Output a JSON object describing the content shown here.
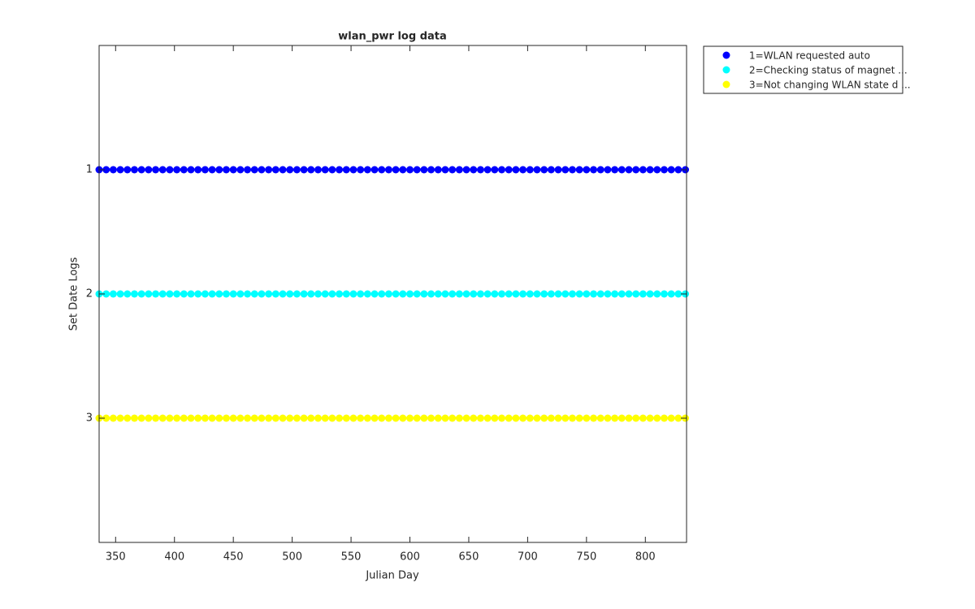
{
  "chart_data": {
    "type": "scatter",
    "title": "wlan_pwr log data",
    "xlabel": "Julian Day",
    "ylabel": "Set Date Logs",
    "x": [
      336,
      342,
      348,
      354,
      360,
      366,
      372,
      378,
      384,
      390,
      396,
      402,
      408,
      414,
      420,
      426,
      432,
      438,
      444,
      450,
      456,
      462,
      468,
      474,
      480,
      486,
      492,
      498,
      504,
      510,
      516,
      522,
      528,
      534,
      540,
      546,
      552,
      558,
      564,
      570,
      576,
      582,
      588,
      594,
      600,
      606,
      612,
      618,
      624,
      630,
      636,
      642,
      648,
      654,
      660,
      666,
      672,
      678,
      684,
      690,
      696,
      702,
      708,
      714,
      720,
      726,
      732,
      738,
      744,
      750,
      756,
      762,
      768,
      774,
      780,
      786,
      792,
      798,
      804,
      810,
      816,
      822,
      828,
      834
    ],
    "series": [
      {
        "name": "1=WLAN requested auto",
        "color": "#0000ff",
        "values": [
          1,
          1,
          1,
          1,
          1,
          1,
          1,
          1,
          1,
          1,
          1,
          1,
          1,
          1,
          1,
          1,
          1,
          1,
          1,
          1,
          1,
          1,
          1,
          1,
          1,
          1,
          1,
          1,
          1,
          1,
          1,
          1,
          1,
          1,
          1,
          1,
          1,
          1,
          1,
          1,
          1,
          1,
          1,
          1,
          1,
          1,
          1,
          1,
          1,
          1,
          1,
          1,
          1,
          1,
          1,
          1,
          1,
          1,
          1,
          1,
          1,
          1,
          1,
          1,
          1,
          1,
          1,
          1,
          1,
          1,
          1,
          1,
          1,
          1,
          1,
          1,
          1,
          1,
          1,
          1,
          1,
          1,
          1,
          1
        ]
      },
      {
        "name": "2=Checking status of magnet ...",
        "color": "#00ffff",
        "values": [
          2,
          2,
          2,
          2,
          2,
          2,
          2,
          2,
          2,
          2,
          2,
          2,
          2,
          2,
          2,
          2,
          2,
          2,
          2,
          2,
          2,
          2,
          2,
          2,
          2,
          2,
          2,
          2,
          2,
          2,
          2,
          2,
          2,
          2,
          2,
          2,
          2,
          2,
          2,
          2,
          2,
          2,
          2,
          2,
          2,
          2,
          2,
          2,
          2,
          2,
          2,
          2,
          2,
          2,
          2,
          2,
          2,
          2,
          2,
          2,
          2,
          2,
          2,
          2,
          2,
          2,
          2,
          2,
          2,
          2,
          2,
          2,
          2,
          2,
          2,
          2,
          2,
          2,
          2,
          2,
          2,
          2,
          2,
          2
        ]
      },
      {
        "name": "3=Not changing WLAN state d ...",
        "color": "#ffff00",
        "values": [
          3,
          3,
          3,
          3,
          3,
          3,
          3,
          3,
          3,
          3,
          3,
          3,
          3,
          3,
          3,
          3,
          3,
          3,
          3,
          3,
          3,
          3,
          3,
          3,
          3,
          3,
          3,
          3,
          3,
          3,
          3,
          3,
          3,
          3,
          3,
          3,
          3,
          3,
          3,
          3,
          3,
          3,
          3,
          3,
          3,
          3,
          3,
          3,
          3,
          3,
          3,
          3,
          3,
          3,
          3,
          3,
          3,
          3,
          3,
          3,
          3,
          3,
          3,
          3,
          3,
          3,
          3,
          3,
          3,
          3,
          3,
          3,
          3,
          3,
          3,
          3,
          3,
          3,
          3,
          3,
          3,
          3,
          3,
          3
        ]
      }
    ],
    "xlim": [
      336,
      835
    ],
    "xticks": [
      350,
      400,
      450,
      500,
      550,
      600,
      650,
      700,
      750,
      800
    ],
    "ylim": [
      0,
      4
    ],
    "yticks": [
      1,
      2,
      3
    ],
    "y_reversed": true,
    "grid": false,
    "legend": "outside-top-right"
  }
}
